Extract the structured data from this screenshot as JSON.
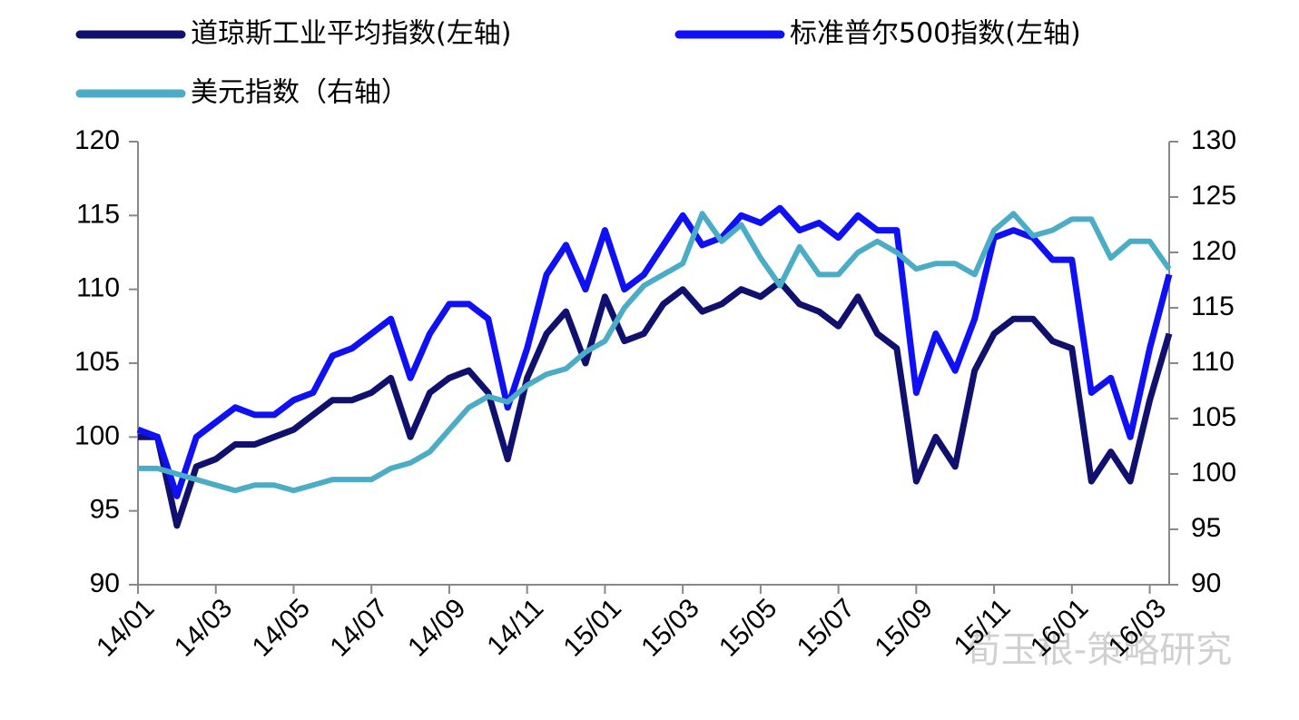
{
  "chart_data": {
    "type": "line",
    "categories": [
      "14/01",
      null,
      null,
      null,
      "14/03",
      null,
      null,
      null,
      "14/05",
      null,
      null,
      null,
      "14/07",
      null,
      null,
      null,
      "14/09",
      null,
      null,
      null,
      "14/11",
      null,
      null,
      null,
      "15/01",
      null,
      null,
      null,
      "15/03",
      null,
      null,
      null,
      "15/05",
      null,
      null,
      null,
      "15/07",
      null,
      null,
      null,
      "15/09",
      null,
      null,
      null,
      "15/11",
      null,
      null,
      null,
      "16/01",
      null,
      null,
      null,
      "16/03",
      null
    ],
    "series": [
      {
        "name": "道琼斯工业平均指数(左轴)",
        "color": "#10106e",
        "axis": "y",
        "values": [
          100,
          100,
          94,
          98,
          98.5,
          99.5,
          99.5,
          100,
          100.5,
          101.5,
          102.5,
          102.5,
          103,
          104,
          100,
          103,
          104,
          104.5,
          103,
          98.5,
          104,
          107,
          108.5,
          105,
          109.5,
          106.5,
          107,
          109,
          110,
          108.5,
          109,
          110,
          109.5,
          110.5,
          109,
          108.5,
          107.5,
          109.5,
          107,
          106,
          97,
          100,
          98,
          104.5,
          107,
          108,
          108,
          106.5,
          106,
          97,
          99,
          97,
          102.5,
          107
        ]
      },
      {
        "name": "标准普尔500指数(左轴)",
        "color": "#1010f5",
        "axis": "y",
        "values": [
          100.5,
          100,
          96,
          100,
          101,
          102,
          101.5,
          101.5,
          102.5,
          103,
          105.5,
          106,
          107,
          108,
          104,
          107,
          109,
          109,
          108,
          102,
          106,
          111,
          113,
          110,
          114,
          110,
          111,
          113,
          115,
          113,
          113.5,
          115,
          114.5,
          115.5,
          114,
          114.5,
          113.5,
          115,
          114,
          114,
          103,
          107,
          104.5,
          108,
          113.5,
          114,
          113.5,
          112,
          112,
          103,
          104,
          100,
          106,
          111
        ]
      },
      {
        "name": "美元指数（右轴）",
        "color": "#4bacc6",
        "axis": "y2",
        "values": [
          100.5,
          100.5,
          100,
          99.5,
          99,
          98.5,
          99,
          99,
          98.5,
          99,
          99.5,
          99.5,
          99.5,
          100.5,
          101,
          102,
          104,
          106,
          107,
          106.5,
          108,
          109,
          109.5,
          111,
          112,
          115,
          117,
          118,
          119,
          123.5,
          121,
          122.5,
          119.5,
          117,
          120.5,
          118,
          118,
          120,
          121,
          120,
          118.5,
          119,
          119,
          118,
          122,
          123.5,
          121.5,
          122,
          123,
          123,
          119.5,
          121,
          121,
          118.5
        ]
      }
    ],
    "ylim": [
      90,
      120
    ],
    "yticks": [
      90,
      95,
      100,
      105,
      110,
      115,
      120
    ],
    "y2lim": [
      90,
      130
    ],
    "y2ticks": [
      90,
      95,
      100,
      105,
      110,
      115,
      120,
      125,
      130
    ],
    "watermark": "荀玉根-策略研究"
  }
}
